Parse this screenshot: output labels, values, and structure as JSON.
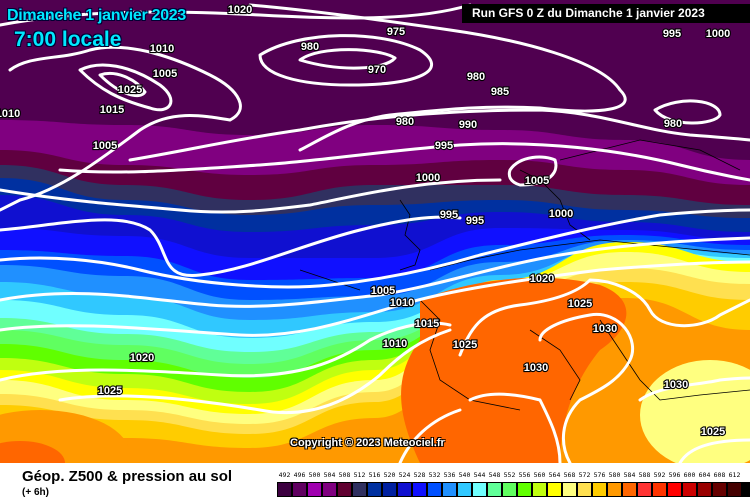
{
  "header": {
    "date": "Dimanche 1 janvier 2023",
    "time": "7:00 locale",
    "run": "Run GFS 0 Z du Dimanche 1 janvier 2023"
  },
  "copyright": "Copyright © 2023 Meteociel.fr",
  "legend": {
    "title": "Géop. Z500 & pression au sol",
    "subtitle": "(+ 6h)",
    "values": [
      "492",
      "496",
      "500",
      "504",
      "508",
      "512",
      "516",
      "520",
      "524",
      "528",
      "532",
      "536",
      "540",
      "544",
      "548",
      "552",
      "556",
      "560",
      "564",
      "568",
      "572",
      "576",
      "580",
      "584",
      "588",
      "592",
      "596",
      "600",
      "604",
      "608",
      "612"
    ],
    "colors": [
      "#3c0040",
      "#600060",
      "#a000b0",
      "#800080",
      "#600030",
      "#303060",
      "#0030a0",
      "#0020a0",
      "#1010d0",
      "#1010ff",
      "#0050ff",
      "#2090ff",
      "#30c8ff",
      "#70ffff",
      "#60ff98",
      "#60ff60",
      "#60ff00",
      "#c0ff10",
      "#ffff00",
      "#ffff80",
      "#ffe050",
      "#ffcc00",
      "#ff9900",
      "#ff6600",
      "#ff3333",
      "#ff3300",
      "#ff0000",
      "#cc0000",
      "#990000",
      "#660000",
      "#440000",
      "#000000"
    ]
  },
  "isobar_labels": [
    {
      "text": "1020"
    },
    {
      "text": "1010"
    },
    {
      "text": "1005"
    },
    {
      "text": "1025"
    },
    {
      "text": "1015"
    },
    {
      "text": "1005"
    },
    {
      "text": "980"
    },
    {
      "text": "975"
    },
    {
      "text": "970"
    },
    {
      "text": "980"
    },
    {
      "text": "985"
    },
    {
      "text": "980"
    },
    {
      "text": "990"
    },
    {
      "text": "995"
    },
    {
      "text": "980"
    },
    {
      "text": "1000"
    },
    {
      "text": "1005"
    },
    {
      "text": "995"
    },
    {
      "text": "995"
    },
    {
      "text": "1000"
    },
    {
      "text": "1020"
    },
    {
      "text": "1025"
    },
    {
      "text": "1030"
    },
    {
      "text": "1005"
    },
    {
      "text": "1010"
    },
    {
      "text": "1015"
    },
    {
      "text": "1010"
    },
    {
      "text": "1025"
    },
    {
      "text": "1030"
    },
    {
      "text": "1030"
    },
    {
      "text": "1025"
    },
    {
      "text": "1020"
    },
    {
      "text": "1025"
    },
    {
      "text": "1010"
    },
    {
      "text": "995"
    },
    {
      "text": "1000"
    }
  ]
}
